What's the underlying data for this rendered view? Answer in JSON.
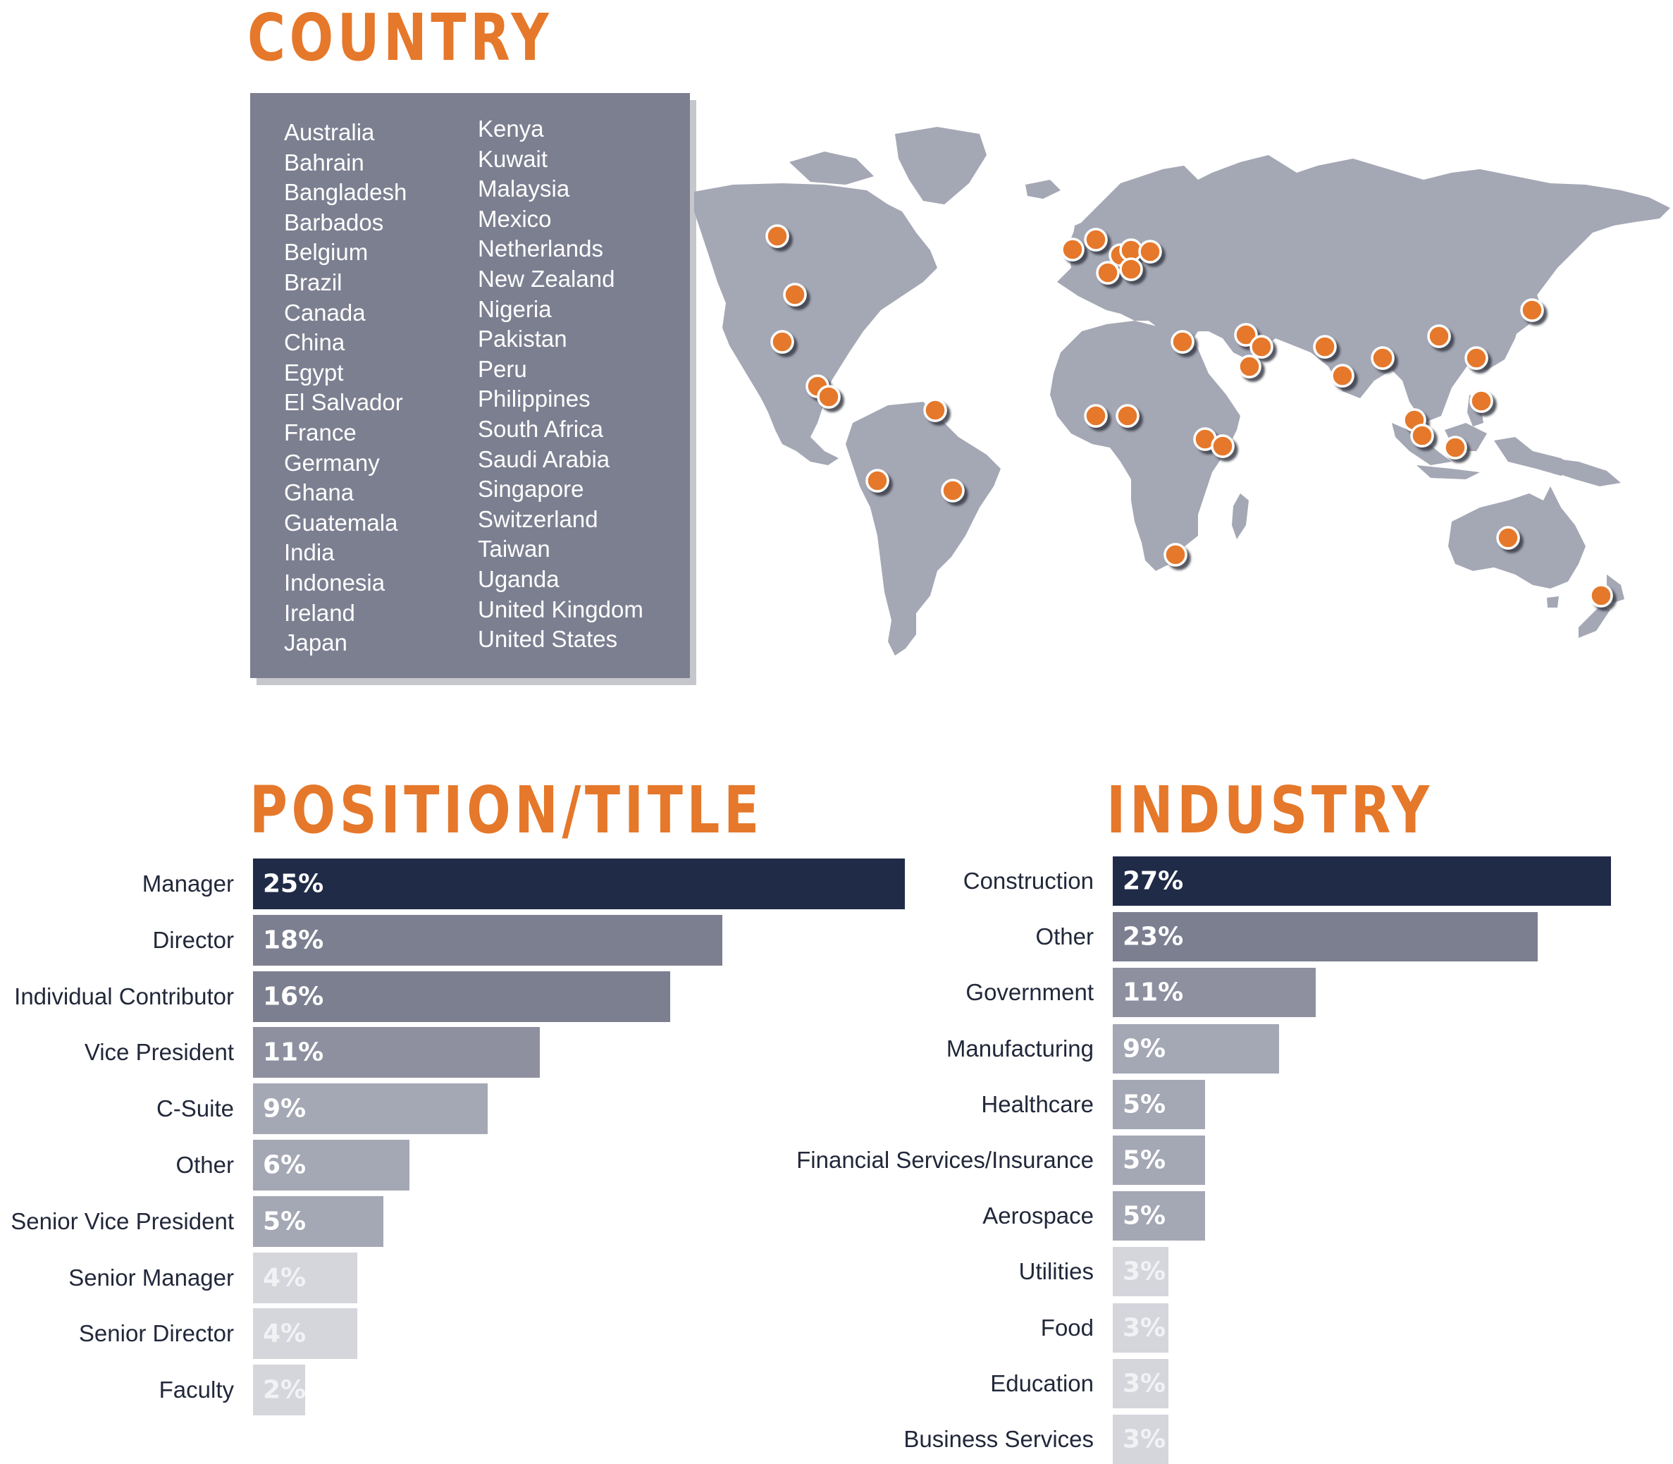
{
  "colors": {
    "accent": "#e5782a",
    "panel": "#7c7f90",
    "land": "#a4a7b4",
    "marker": "#e5782a",
    "bar_scale": [
      "#202b48",
      "#7c7f90",
      "#8e90a0",
      "#a4a7b4",
      "#d5d6dc"
    ]
  },
  "country": {
    "title": "COUNTRY",
    "column1": [
      "Australia",
      "Bahrain",
      "Bangladesh",
      "Barbados",
      "Belgium",
      "Brazil",
      "Canada",
      "China",
      "Egypt",
      "El Salvador",
      "France",
      "Germany",
      "Ghana",
      "Guatemala",
      "India",
      "Indonesia",
      "Ireland",
      "Japan"
    ],
    "column2": [
      "Kenya",
      "Kuwait",
      "Malaysia",
      "Mexico",
      "Netherlands",
      "New Zealand",
      "Nigeria",
      "Pakistan",
      "Peru",
      "Philippines",
      "South Africa",
      "Saudi Arabia",
      "Singapore",
      "Switzerland",
      "Taiwan",
      "Uganda",
      "United Kingdom",
      "United States"
    ]
  },
  "position": {
    "title": "POSITION/TITLE"
  },
  "industry": {
    "title": "INDUSTRY"
  },
  "chart_data": [
    {
      "type": "bar",
      "orientation": "horizontal",
      "title": "POSITION/TITLE",
      "categories": [
        "Manager",
        "Director",
        "Individual Contributor",
        "Vice President",
        "C-Suite",
        "Other",
        "Senior Vice President",
        "Senior Manager",
        "Senior Director",
        "Faculty"
      ],
      "values": [
        25,
        18,
        16,
        11,
        9,
        6,
        5,
        4,
        4,
        2
      ],
      "labels": [
        "25%",
        "18%",
        "16%",
        "11%",
        "9%",
        "6%",
        "5%",
        "4%",
        "4%",
        "2%"
      ],
      "unit": "%"
    },
    {
      "type": "bar",
      "orientation": "horizontal",
      "title": "INDUSTRY",
      "categories": [
        "Construction",
        "Other",
        "Government",
        "Manufacturing",
        "Healthcare",
        "Financial Services/Insurance",
        "Aerospace",
        "Utilities",
        "Food",
        "Education",
        "Business Services"
      ],
      "values": [
        27,
        23,
        11,
        9,
        5,
        5,
        5,
        3,
        3,
        3,
        3
      ],
      "labels": [
        "27%",
        "23%",
        "11%",
        "9%",
        "5%",
        "5%",
        "5%",
        "3%",
        "3%",
        "3%",
        "3%"
      ],
      "unit": "%"
    }
  ]
}
